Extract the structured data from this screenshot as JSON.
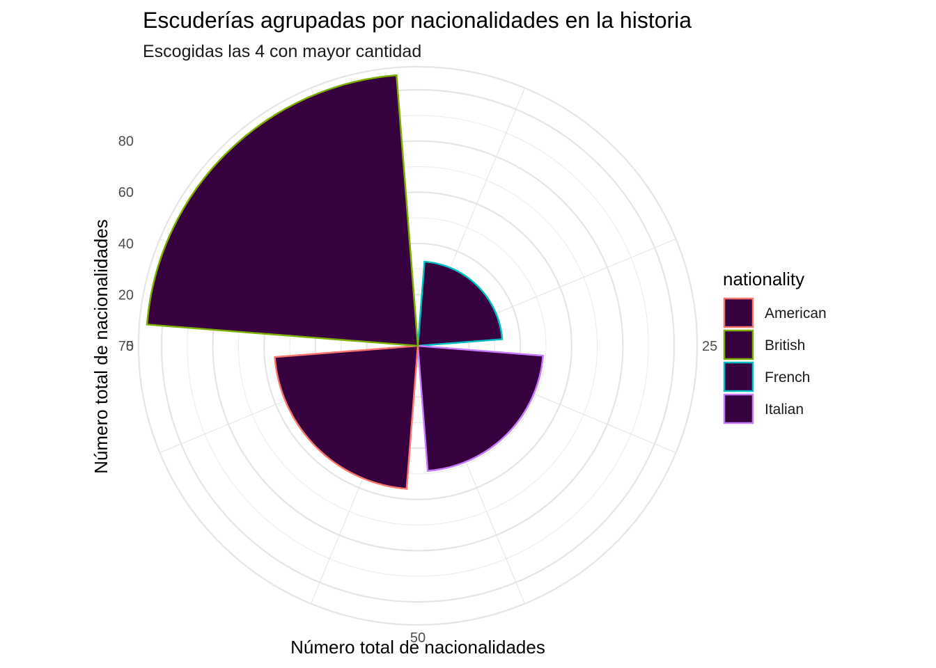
{
  "chart_data": {
    "type": "bar",
    "coord": "polar",
    "title": "Escuderías agrupadas por nacionalidades en la historia",
    "subtitle": "Escogidas las 4 con mayor cantidad",
    "xlabel": "Número total de nacionalidades",
    "ylabel": "Número total de nacionalidades",
    "categories": [
      "French",
      "Italian",
      "American",
      "British"
    ],
    "values": [
      13,
      29,
      36,
      86
    ],
    "theta_range": [
      0,
      100
    ],
    "theta_ticks": [
      25,
      50,
      75
    ],
    "r_range": [
      -20,
      89
    ],
    "r_ticks": [
      0,
      20,
      40,
      60,
      80
    ],
    "fill_color": "#370140",
    "grid": true,
    "legend": {
      "title": "nationality",
      "position": "right",
      "items": [
        {
          "label": "American",
          "color": "#F8766D"
        },
        {
          "label": "British",
          "color": "#7CAE00"
        },
        {
          "label": "French",
          "color": "#00BFC4"
        },
        {
          "label": "Italian",
          "color": "#C77CFF"
        }
      ]
    }
  }
}
